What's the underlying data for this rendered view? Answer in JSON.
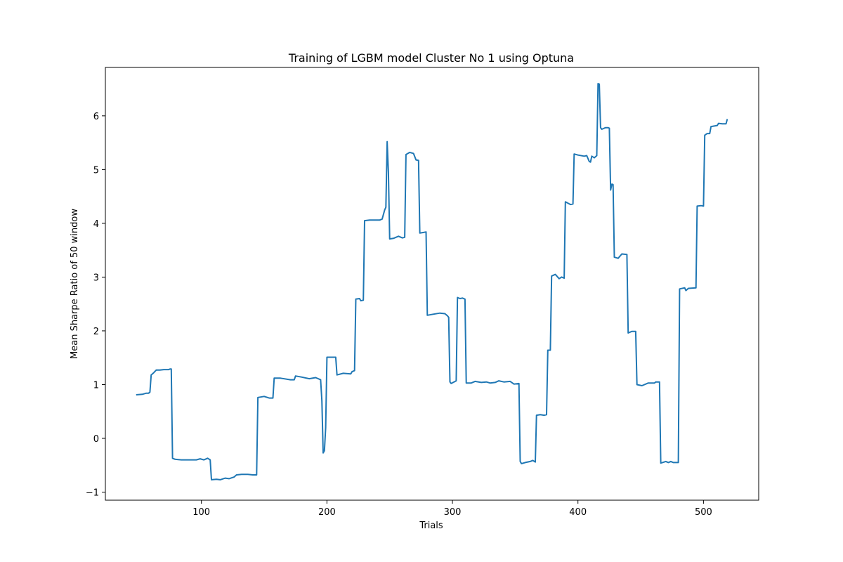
{
  "chart_data": {
    "type": "line",
    "title": "Training of LGBM model Cluster No 1 using Optuna",
    "xlabel": "Trials",
    "ylabel": "Mean Sharpe Ratio of 50 window",
    "xlim": [
      23.5,
      544
    ],
    "ylim": [
      -1.15,
      6.9
    ],
    "xticks": [
      100,
      200,
      300,
      400,
      500
    ],
    "yticks": [
      -1,
      0,
      1,
      2,
      3,
      4,
      5,
      6
    ],
    "grid": false,
    "series": [
      {
        "color": "#1f77b4",
        "points": [
          [
            48,
            0.81
          ],
          [
            53,
            0.82
          ],
          [
            56,
            0.84
          ],
          [
            58,
            0.84
          ],
          [
            59,
            0.86
          ],
          [
            60,
            1.18
          ],
          [
            62,
            1.22
          ],
          [
            64,
            1.27
          ],
          [
            67,
            1.27
          ],
          [
            70,
            1.28
          ],
          [
            74,
            1.28
          ],
          [
            75,
            1.29
          ],
          [
            76,
            1.29
          ],
          [
            77,
            -0.37
          ],
          [
            79,
            -0.39
          ],
          [
            84,
            -0.4
          ],
          [
            89,
            -0.4
          ],
          [
            96,
            -0.4
          ],
          [
            99,
            -0.38
          ],
          [
            102,
            -0.4
          ],
          [
            105,
            -0.37
          ],
          [
            107,
            -0.4
          ],
          [
            108,
            -0.77
          ],
          [
            112,
            -0.76
          ],
          [
            115,
            -0.77
          ],
          [
            119,
            -0.74
          ],
          [
            122,
            -0.75
          ],
          [
            126,
            -0.72
          ],
          [
            128,
            -0.68
          ],
          [
            132,
            -0.67
          ],
          [
            137,
            -0.67
          ],
          [
            141,
            -0.68
          ],
          [
            144,
            -0.68
          ],
          [
            145,
            0.76
          ],
          [
            150,
            0.78
          ],
          [
            154,
            0.75
          ],
          [
            157,
            0.75
          ],
          [
            158,
            1.12
          ],
          [
            163,
            1.12
          ],
          [
            171,
            1.09
          ],
          [
            174,
            1.09
          ],
          [
            175,
            1.16
          ],
          [
            180,
            1.14
          ],
          [
            186,
            1.11
          ],
          [
            191,
            1.13
          ],
          [
            195,
            1.09
          ],
          [
            196,
            0.7
          ],
          [
            197,
            -0.27
          ],
          [
            198,
            -0.23
          ],
          [
            199,
            0.2
          ],
          [
            200,
            1.51
          ],
          [
            207,
            1.51
          ],
          [
            208,
            1.18
          ],
          [
            213,
            1.21
          ],
          [
            219,
            1.2
          ],
          [
            220,
            1.24
          ],
          [
            222,
            1.26
          ],
          [
            223,
            2.59
          ],
          [
            226,
            2.6
          ],
          [
            227,
            2.56
          ],
          [
            229,
            2.57
          ],
          [
            230,
            4.05
          ],
          [
            234,
            4.06
          ],
          [
            238,
            4.06
          ],
          [
            242,
            4.06
          ],
          [
            244,
            4.08
          ],
          [
            246,
            4.25
          ],
          [
            247,
            4.3
          ],
          [
            248,
            5.52
          ],
          [
            249,
            4.95
          ],
          [
            250,
            3.71
          ],
          [
            253,
            3.72
          ],
          [
            257,
            3.76
          ],
          [
            260,
            3.73
          ],
          [
            262,
            3.74
          ],
          [
            263,
            5.28
          ],
          [
            266,
            5.32
          ],
          [
            269,
            5.3
          ],
          [
            271,
            5.18
          ],
          [
            273,
            5.17
          ],
          [
            274,
            3.82
          ],
          [
            277,
            3.83
          ],
          [
            279,
            3.84
          ],
          [
            280,
            2.29
          ],
          [
            285,
            2.31
          ],
          [
            290,
            2.33
          ],
          [
            294,
            2.32
          ],
          [
            296,
            2.28
          ],
          [
            297,
            2.25
          ],
          [
            298,
            1.05
          ],
          [
            299,
            1.02
          ],
          [
            303,
            1.07
          ],
          [
            304,
            2.62
          ],
          [
            306,
            2.6
          ],
          [
            308,
            2.61
          ],
          [
            310,
            2.59
          ],
          [
            311,
            1.03
          ],
          [
            315,
            1.03
          ],
          [
            318,
            1.06
          ],
          [
            323,
            1.04
          ],
          [
            327,
            1.05
          ],
          [
            330,
            1.03
          ],
          [
            334,
            1.04
          ],
          [
            337,
            1.07
          ],
          [
            341,
            1.05
          ],
          [
            346,
            1.06
          ],
          [
            349,
            1.01
          ],
          [
            353,
            1.02
          ],
          [
            354,
            -0.43
          ],
          [
            355,
            -0.47
          ],
          [
            358,
            -0.45
          ],
          [
            362,
            -0.43
          ],
          [
            364,
            -0.41
          ],
          [
            366,
            -0.44
          ],
          [
            367,
            0.43
          ],
          [
            370,
            0.44
          ],
          [
            373,
            0.43
          ],
          [
            375,
            0.44
          ],
          [
            376,
            1.64
          ],
          [
            378,
            1.64
          ],
          [
            379,
            3.02
          ],
          [
            382,
            3.05
          ],
          [
            385,
            2.97
          ],
          [
            387,
            3.0
          ],
          [
            389,
            2.98
          ],
          [
            390,
            4.4
          ],
          [
            394,
            4.35
          ],
          [
            396,
            4.36
          ],
          [
            397,
            5.29
          ],
          [
            400,
            5.27
          ],
          [
            405,
            5.25
          ],
          [
            407,
            5.26
          ],
          [
            409,
            5.15
          ],
          [
            410,
            5.14
          ],
          [
            411,
            5.25
          ],
          [
            413,
            5.22
          ],
          [
            415,
            5.26
          ],
          [
            416,
            6.6
          ],
          [
            417,
            6.59
          ],
          [
            418,
            5.78
          ],
          [
            419,
            5.75
          ],
          [
            422,
            5.78
          ],
          [
            424,
            5.78
          ],
          [
            425,
            5.77
          ],
          [
            426,
            4.62
          ],
          [
            427,
            4.73
          ],
          [
            428,
            4.72
          ],
          [
            429,
            3.37
          ],
          [
            432,
            3.35
          ],
          [
            435,
            3.43
          ],
          [
            439,
            3.42
          ],
          [
            440,
            1.96
          ],
          [
            443,
            1.99
          ],
          [
            446,
            1.99
          ],
          [
            447,
            1.0
          ],
          [
            451,
            0.98
          ],
          [
            456,
            1.03
          ],
          [
            461,
            1.03
          ],
          [
            462,
            1.05
          ],
          [
            465,
            1.05
          ],
          [
            466,
            -0.46
          ],
          [
            470,
            -0.43
          ],
          [
            472,
            -0.45
          ],
          [
            474,
            -0.43
          ],
          [
            476,
            -0.45
          ],
          [
            480,
            -0.45
          ],
          [
            481,
            2.78
          ],
          [
            485,
            2.8
          ],
          [
            486,
            2.75
          ],
          [
            488,
            2.79
          ],
          [
            494,
            2.8
          ],
          [
            495,
            4.32
          ],
          [
            498,
            4.33
          ],
          [
            500,
            4.32
          ],
          [
            501,
            5.64
          ],
          [
            503,
            5.67
          ],
          [
            505,
            5.67
          ],
          [
            506,
            5.8
          ],
          [
            511,
            5.82
          ],
          [
            512,
            5.86
          ],
          [
            515,
            5.85
          ],
          [
            518,
            5.85
          ],
          [
            519,
            5.94
          ]
        ]
      }
    ]
  }
}
